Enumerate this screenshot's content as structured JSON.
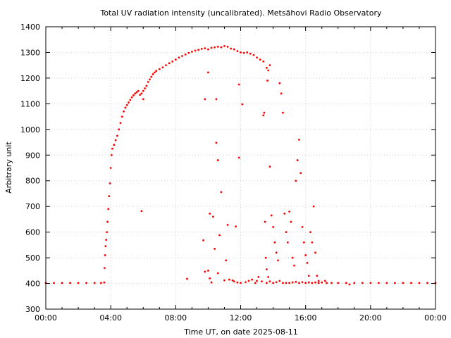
{
  "chart_data": {
    "type": "scatter",
    "title": "Total UV radiation intensity (uncalibrated). Metsähovi Radio Observatory",
    "xlabel": "Time UT, on date 2025-08-11",
    "ylabel": "Arbitrary unit",
    "xlim": [
      0,
      24
    ],
    "ylim": [
      300,
      1400
    ],
    "x_ticks": [
      0,
      4,
      8,
      12,
      16,
      20,
      24
    ],
    "x_tick_labels": [
      "00:00",
      "04:00",
      "08:00",
      "12:00",
      "16:00",
      "20:00",
      "00:00"
    ],
    "y_ticks": [
      300,
      400,
      500,
      600,
      700,
      800,
      900,
      1000,
      1100,
      1200,
      1300,
      1400
    ],
    "y_tick_labels": [
      "300",
      "400",
      "500",
      "600",
      "700",
      "800",
      "900",
      "1000",
      "1100",
      "1200",
      "1300",
      "1400"
    ],
    "grid": true,
    "marker_color": "#ff0000",
    "series": [
      {
        "points": [
          [
            0.0,
            402
          ],
          [
            0.5,
            402
          ],
          [
            1.0,
            402
          ],
          [
            1.5,
            402
          ],
          [
            2.0,
            402
          ],
          [
            2.5,
            402
          ],
          [
            3.0,
            402
          ],
          [
            3.4,
            402
          ],
          [
            3.6,
            404
          ],
          [
            3.62,
            460
          ],
          [
            3.65,
            510
          ],
          [
            3.68,
            545
          ],
          [
            3.72,
            570
          ],
          [
            3.76,
            600
          ],
          [
            3.8,
            640
          ],
          [
            3.85,
            690
          ],
          [
            3.9,
            740
          ],
          [
            3.95,
            790
          ],
          [
            4.0,
            850
          ],
          [
            4.05,
            900
          ],
          [
            4.1,
            925
          ],
          [
            4.2,
            940
          ],
          [
            4.3,
            958
          ],
          [
            4.4,
            975
          ],
          [
            4.5,
            1000
          ],
          [
            4.6,
            1025
          ],
          [
            4.7,
            1050
          ],
          [
            4.8,
            1070
          ],
          [
            4.9,
            1085
          ],
          [
            5.0,
            1095
          ],
          [
            5.1,
            1105
          ],
          [
            5.2,
            1115
          ],
          [
            5.3,
            1125
          ],
          [
            5.4,
            1133
          ],
          [
            5.5,
            1140
          ],
          [
            5.6,
            1145
          ],
          [
            5.7,
            1150
          ],
          [
            5.8,
            1135
          ],
          [
            5.9,
            1140
          ],
          [
            6.0,
            1150
          ],
          [
            6.1,
            1160
          ],
          [
            6.2,
            1170
          ],
          [
            6.3,
            1185
          ],
          [
            6.4,
            1195
          ],
          [
            6.5,
            1205
          ],
          [
            6.6,
            1215
          ],
          [
            6.7,
            1222
          ],
          [
            6.8,
            1228
          ],
          [
            7.0,
            1235
          ],
          [
            7.2,
            1242
          ],
          [
            7.4,
            1250
          ],
          [
            7.6,
            1258
          ],
          [
            7.8,
            1265
          ],
          [
            8.0,
            1272
          ],
          [
            8.2,
            1280
          ],
          [
            8.4,
            1286
          ],
          [
            8.6,
            1292
          ],
          [
            8.8,
            1298
          ],
          [
            9.0,
            1303
          ],
          [
            9.2,
            1307
          ],
          [
            9.4,
            1310
          ],
          [
            9.6,
            1314
          ],
          [
            9.8,
            1316
          ],
          [
            10.0,
            1312
          ],
          [
            10.2,
            1318
          ],
          [
            10.4,
            1320
          ],
          [
            10.6,
            1322
          ],
          [
            10.8,
            1320
          ],
          [
            11.0,
            1325
          ],
          [
            11.2,
            1322
          ],
          [
            11.4,
            1315
          ],
          [
            11.6,
            1312
          ],
          [
            11.8,
            1305
          ],
          [
            12.0,
            1300
          ],
          [
            12.2,
            1298
          ],
          [
            12.4,
            1300
          ],
          [
            12.6,
            1295
          ],
          [
            12.8,
            1290
          ],
          [
            13.0,
            1280
          ],
          [
            13.2,
            1272
          ],
          [
            13.4,
            1265
          ],
          [
            13.6,
            1240
          ],
          [
            13.7,
            1230
          ],
          [
            13.8,
            1250
          ],
          [
            5.9,
            682
          ],
          [
            6.0,
            1118
          ],
          [
            8.7,
            418
          ],
          [
            9.8,
            1118
          ],
          [
            10.0,
            1222
          ],
          [
            10.1,
            672
          ],
          [
            10.3,
            660
          ],
          [
            10.5,
            948
          ],
          [
            10.6,
            880
          ],
          [
            10.8,
            756
          ],
          [
            11.0,
            412
          ],
          [
            11.2,
            628
          ],
          [
            11.5,
            412
          ],
          [
            11.7,
            622
          ],
          [
            11.9,
            890
          ],
          [
            12.1,
            1098
          ],
          [
            11.9,
            1175
          ],
          [
            12.5,
            410
          ],
          [
            13.0,
            410
          ],
          [
            9.7,
            568
          ],
          [
            9.8,
            446
          ],
          [
            10.0,
            450
          ],
          [
            10.1,
            420
          ],
          [
            10.2,
            404
          ],
          [
            10.4,
            535
          ],
          [
            10.5,
            1118
          ],
          [
            10.6,
            440
          ],
          [
            10.7,
            588
          ],
          [
            11.1,
            490
          ],
          [
            11.3,
            415
          ],
          [
            11.6,
            408
          ],
          [
            11.8,
            404
          ],
          [
            12.0,
            402
          ],
          [
            12.3,
            405
          ],
          [
            12.7,
            415
          ],
          [
            12.9,
            402
          ],
          [
            13.1,
            425
          ],
          [
            13.3,
            408
          ],
          [
            13.4,
            1055
          ],
          [
            13.45,
            1065
          ],
          [
            13.5,
            640
          ],
          [
            13.55,
            500
          ],
          [
            13.6,
            455
          ],
          [
            13.65,
            1190
          ],
          [
            13.7,
            425
          ],
          [
            13.8,
            855
          ],
          [
            13.9,
            665
          ],
          [
            14.0,
            620
          ],
          [
            14.1,
            560
          ],
          [
            14.2,
            520
          ],
          [
            14.3,
            490
          ],
          [
            14.4,
            1180
          ],
          [
            14.5,
            1140
          ],
          [
            14.6,
            1065
          ],
          [
            14.7,
            672
          ],
          [
            14.8,
            600
          ],
          [
            14.9,
            560
          ],
          [
            15.0,
            680
          ],
          [
            15.1,
            640
          ],
          [
            15.2,
            500
          ],
          [
            15.3,
            470
          ],
          [
            15.4,
            800
          ],
          [
            15.5,
            880
          ],
          [
            15.6,
            960
          ],
          [
            15.7,
            830
          ],
          [
            15.8,
            620
          ],
          [
            15.9,
            560
          ],
          [
            16.0,
            510
          ],
          [
            16.1,
            480
          ],
          [
            16.2,
            430
          ],
          [
            16.3,
            600
          ],
          [
            16.4,
            560
          ],
          [
            16.5,
            700
          ],
          [
            16.6,
            520
          ],
          [
            16.7,
            430
          ],
          [
            16.8,
            410
          ],
          [
            13.6,
            402
          ],
          [
            13.8,
            408
          ],
          [
            14.0,
            402
          ],
          [
            14.2,
            405
          ],
          [
            14.4,
            410
          ],
          [
            14.6,
            402
          ],
          [
            14.8,
            402
          ],
          [
            15.0,
            402
          ],
          [
            15.2,
            404
          ],
          [
            15.4,
            406
          ],
          [
            15.6,
            402
          ],
          [
            15.8,
            405
          ],
          [
            16.0,
            402
          ],
          [
            16.2,
            404
          ],
          [
            16.4,
            402
          ],
          [
            16.6,
            404
          ],
          [
            16.8,
            402
          ],
          [
            17.0,
            404
          ],
          [
            17.2,
            410
          ],
          [
            17.3,
            402
          ],
          [
            17.6,
            402
          ],
          [
            18.0,
            402
          ],
          [
            18.5,
            402
          ],
          [
            18.7,
            396
          ],
          [
            19.0,
            402
          ],
          [
            19.5,
            402
          ],
          [
            20.0,
            402
          ],
          [
            20.5,
            402
          ],
          [
            21.0,
            402
          ],
          [
            21.5,
            402
          ],
          [
            22.0,
            402
          ],
          [
            22.5,
            402
          ],
          [
            23.0,
            402
          ],
          [
            23.5,
            402
          ],
          [
            24.0,
            402
          ]
        ]
      }
    ]
  }
}
